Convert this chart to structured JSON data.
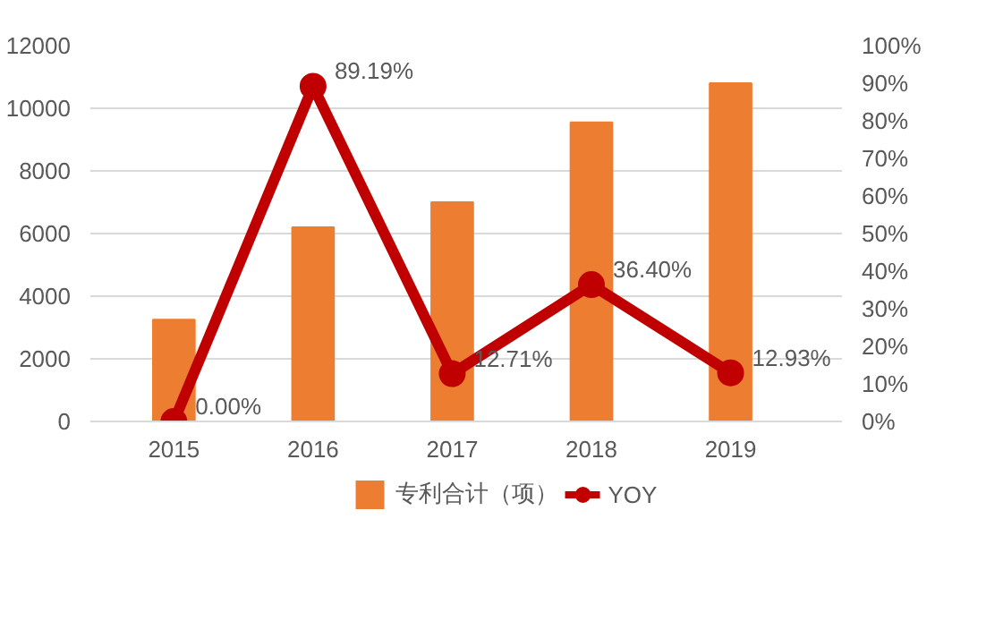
{
  "chart_data": {
    "type": "bar",
    "categories": [
      "2015",
      "2016",
      "2017",
      "2018",
      "2019"
    ],
    "series": [
      {
        "name": "专利合计（项）",
        "color": "#ed7d31",
        "values": [
          3250,
          6200,
          7000,
          9550,
          10800
        ]
      },
      {
        "name": "YOY",
        "type": "line",
        "axis": "y2",
        "color": "#c00000",
        "marker": "circle",
        "values": [
          0.0,
          89.19,
          12.71,
          36.4,
          12.93
        ],
        "value_labels": [
          "0.00%",
          "89.19%",
          "12.71%",
          "36.40%",
          "12.93%"
        ]
      }
    ],
    "ylim": [
      0,
      12000
    ],
    "yticks": [
      0,
      2000,
      4000,
      6000,
      8000,
      10000,
      12000
    ],
    "y2lim": [
      0,
      100
    ],
    "y2ticks": [
      {
        "value": 0,
        "label": "0%"
      },
      {
        "value": 10,
        "label": "10%"
      },
      {
        "value": 20,
        "label": "20%"
      },
      {
        "value": 30,
        "label": "30%"
      },
      {
        "value": 40,
        "label": "40%"
      },
      {
        "value": 50,
        "label": "50%"
      },
      {
        "value": 60,
        "label": "60%"
      },
      {
        "value": 70,
        "label": "70%"
      },
      {
        "value": 80,
        "label": "80%"
      },
      {
        "value": 90,
        "label": "90%"
      },
      {
        "value": 100,
        "label": "100%"
      }
    ],
    "grid": "y",
    "legend": "bottom"
  }
}
